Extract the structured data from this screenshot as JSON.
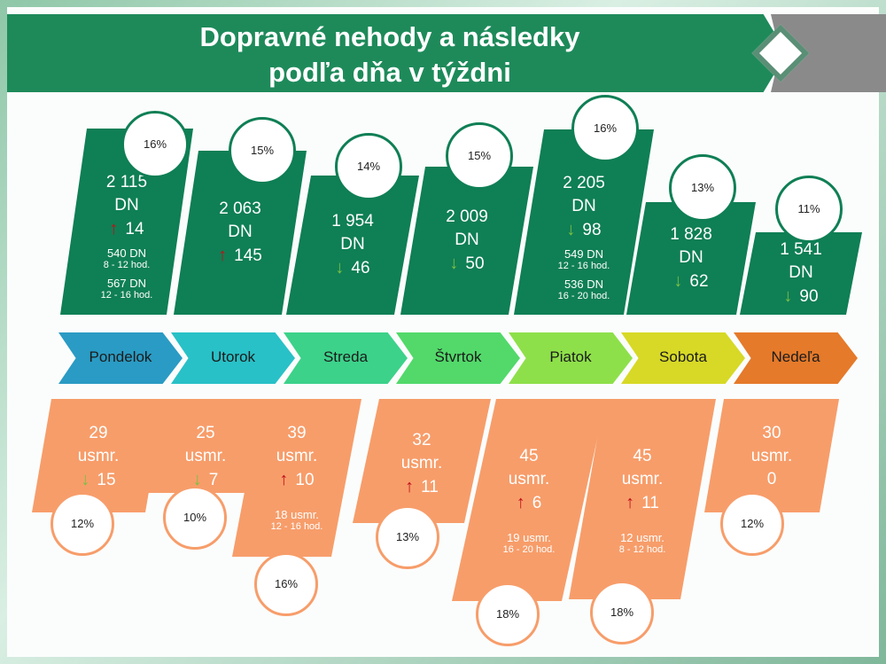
{
  "title": {
    "line1": "Dopravné nehody a následky",
    "line2": "podľa dňa v týždni"
  },
  "days": [
    {
      "name": "Pondelok",
      "color": "#2a9bc4",
      "accidents": {
        "count": "2 115",
        "unit": "DN",
        "trend": "up",
        "change": "14",
        "pct": "16%",
        "notes": [
          {
            "value": "540 DN",
            "range": "8 - 12 hod."
          },
          {
            "value": "567 DN",
            "range": "12 - 16 hod."
          }
        ]
      },
      "deaths": {
        "count": "29",
        "unit": "usmr.",
        "trend": "down",
        "change": "15",
        "pct": "12%",
        "notes": []
      }
    },
    {
      "name": "Utorok",
      "color": "#28c1c7",
      "accidents": {
        "count": "2 063",
        "unit": "DN",
        "trend": "up",
        "change": "145",
        "pct": "15%",
        "notes": []
      },
      "deaths": {
        "count": "25",
        "unit": "usmr.",
        "trend": "down",
        "change": "7",
        "pct": "10%",
        "notes": []
      }
    },
    {
      "name": "Streda",
      "color": "#3cd28a",
      "accidents": {
        "count": "1 954",
        "unit": "DN",
        "trend": "down",
        "change": "46",
        "pct": "14%",
        "notes": []
      },
      "deaths": {
        "count": "39",
        "unit": "usmr.",
        "trend": "up",
        "change": "10",
        "pct": "16%",
        "notes": [
          {
            "value": "18 usmr.",
            "range": "12 - 16 hod."
          }
        ]
      }
    },
    {
      "name": "Štvrtok",
      "color": "#52d96a",
      "accidents": {
        "count": "2 009",
        "unit": "DN",
        "trend": "down",
        "change": "50",
        "pct": "15%",
        "notes": []
      },
      "deaths": {
        "count": "32",
        "unit": "usmr.",
        "trend": "up",
        "change": "11",
        "pct": "13%",
        "notes": []
      }
    },
    {
      "name": "Piatok",
      "color": "#8ee04a",
      "accidents": {
        "count": "2 205",
        "unit": "DN",
        "trend": "down",
        "change": "98",
        "pct": "16%",
        "notes": [
          {
            "value": "549 DN",
            "range": "12 - 16 hod."
          },
          {
            "value": "536 DN",
            "range": "16 - 20 hod."
          }
        ]
      },
      "deaths": {
        "count": "45",
        "unit": "usmr.",
        "trend": "up",
        "change": "6",
        "pct": "18%",
        "notes": [
          {
            "value": "19 usmr.",
            "range": "16 - 20 hod."
          }
        ]
      }
    },
    {
      "name": "Sobota",
      "color": "#d7d926",
      "accidents": {
        "count": "1 828",
        "unit": "DN",
        "trend": "down",
        "change": "62",
        "pct": "13%",
        "notes": []
      },
      "deaths": {
        "count": "45",
        "unit": "usmr.",
        "trend": "up",
        "change": "11",
        "pct": "18%",
        "notes": [
          {
            "value": "12 usmr.",
            "range": "8 - 12 hod."
          }
        ]
      }
    },
    {
      "name": "Nedeľa",
      "color": "#e57a2a",
      "accidents": {
        "count": "1 541",
        "unit": "DN",
        "trend": "down",
        "change": "90",
        "pct": "11%",
        "notes": []
      },
      "deaths": {
        "count": "30",
        "unit": "usmr.",
        "trend": "none",
        "change": "0",
        "pct": "12%",
        "notes": []
      }
    }
  ]
}
